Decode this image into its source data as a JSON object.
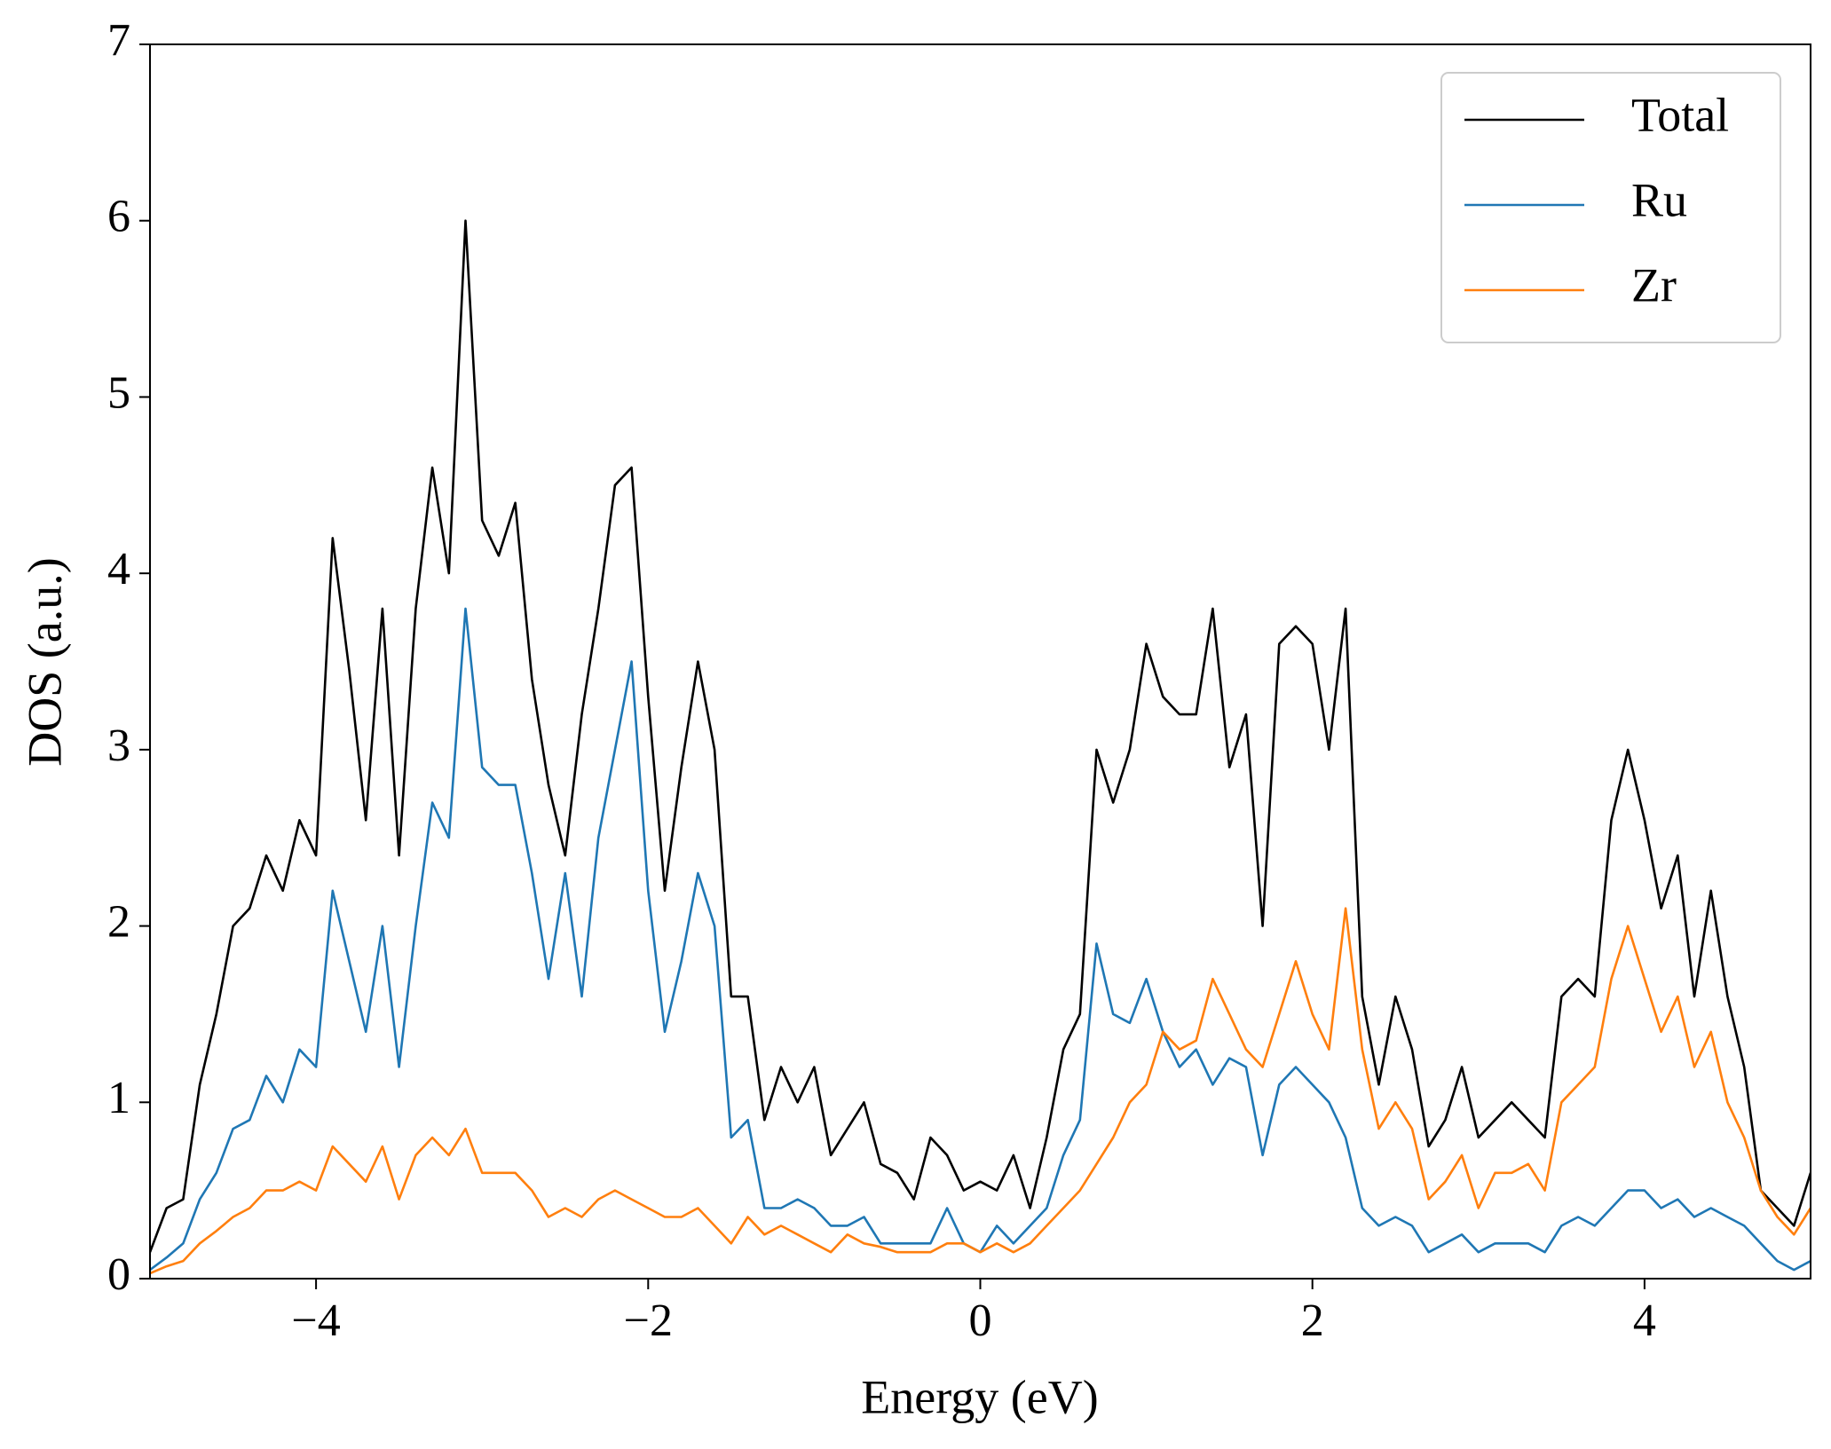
{
  "chart_data": {
    "type": "line",
    "xlabel": "Energy (eV)",
    "ylabel": "DOS (a.u.)",
    "xlim": [
      -5,
      5
    ],
    "ylim": [
      0,
      7
    ],
    "xticks": [
      {
        "value": -4,
        "label": "−4"
      },
      {
        "value": -2,
        "label": "−2"
      },
      0,
      2,
      4
    ],
    "yticks": [
      0,
      1,
      2,
      3,
      4,
      5,
      6,
      7
    ],
    "legend": "upper right",
    "x": [
      -5.0,
      -4.9,
      -4.8,
      -4.7,
      -4.6,
      -4.5,
      -4.4,
      -4.3,
      -4.2,
      -4.1,
      -4.0,
      -3.9,
      -3.8,
      -3.7,
      -3.6,
      -3.5,
      -3.4,
      -3.3,
      -3.2,
      -3.1,
      -3.0,
      -2.9,
      -2.8,
      -2.7,
      -2.6,
      -2.5,
      -2.4,
      -2.3,
      -2.2,
      -2.1,
      -2.0,
      -1.9,
      -1.8,
      -1.7,
      -1.6,
      -1.5,
      -1.4,
      -1.3,
      -1.2,
      -1.1,
      -1.0,
      -0.9,
      -0.8,
      -0.7,
      -0.6,
      -0.5,
      -0.4,
      -0.3,
      -0.2,
      -0.1,
      0.0,
      0.1,
      0.2,
      0.3,
      0.4,
      0.5,
      0.6,
      0.7,
      0.8,
      0.9,
      1.0,
      1.1,
      1.2,
      1.3,
      1.4,
      1.5,
      1.6,
      1.7,
      1.8,
      1.9,
      2.0,
      2.1,
      2.2,
      2.3,
      2.4,
      2.5,
      2.6,
      2.7,
      2.8,
      2.9,
      3.0,
      3.1,
      3.2,
      3.3,
      3.4,
      3.5,
      3.6,
      3.7,
      3.8,
      3.9,
      4.0,
      4.1,
      4.2,
      4.3,
      4.4,
      4.5,
      4.6,
      4.7,
      4.8,
      4.9,
      5.0
    ],
    "series": [
      {
        "name": "Total",
        "color": "#000000",
        "values": [
          0.15,
          0.4,
          0.45,
          1.1,
          1.5,
          2.0,
          2.1,
          2.4,
          2.2,
          2.6,
          2.4,
          4.2,
          3.45,
          2.6,
          3.8,
          2.4,
          3.8,
          4.6,
          4.0,
          6.0,
          4.3,
          4.1,
          4.4,
          3.4,
          2.8,
          2.4,
          3.2,
          3.8,
          4.5,
          4.6,
          3.3,
          2.2,
          2.9,
          3.5,
          3.0,
          1.6,
          1.6,
          0.9,
          1.2,
          1.0,
          1.2,
          0.7,
          0.85,
          1.0,
          0.65,
          0.6,
          0.45,
          0.8,
          0.7,
          0.5,
          0.55,
          0.5,
          0.7,
          0.4,
          0.8,
          1.3,
          1.5,
          3.0,
          2.7,
          3.0,
          3.6,
          3.3,
          3.2,
          3.2,
          3.8,
          2.9,
          3.2,
          2.0,
          3.6,
          3.7,
          3.6,
          3.0,
          3.8,
          1.6,
          1.1,
          1.6,
          1.3,
          0.75,
          0.9,
          1.2,
          0.8,
          0.9,
          1.0,
          0.9,
          0.8,
          1.6,
          1.7,
          1.6,
          2.6,
          3.0,
          2.6,
          2.1,
          2.4,
          1.6,
          2.2,
          1.6,
          1.2,
          0.5,
          0.4,
          0.3,
          0.6
        ]
      },
      {
        "name": "Ru",
        "color": "#1f77b4",
        "values": [
          0.05,
          0.12,
          0.2,
          0.45,
          0.6,
          0.85,
          0.9,
          1.15,
          1.0,
          1.3,
          1.2,
          2.2,
          1.8,
          1.4,
          2.0,
          1.2,
          2.0,
          2.7,
          2.5,
          3.8,
          2.9,
          2.8,
          2.8,
          2.3,
          1.7,
          2.3,
          1.6,
          2.5,
          3.0,
          3.5,
          2.2,
          1.4,
          1.8,
          2.3,
          2.0,
          0.8,
          0.9,
          0.4,
          0.4,
          0.45,
          0.4,
          0.3,
          0.3,
          0.35,
          0.2,
          0.2,
          0.2,
          0.2,
          0.4,
          0.2,
          0.15,
          0.3,
          0.2,
          0.3,
          0.4,
          0.7,
          0.9,
          1.9,
          1.5,
          1.45,
          1.7,
          1.4,
          1.2,
          1.3,
          1.1,
          1.25,
          1.2,
          0.7,
          1.1,
          1.2,
          1.1,
          1.0,
          0.8,
          0.4,
          0.3,
          0.35,
          0.3,
          0.15,
          0.2,
          0.25,
          0.15,
          0.2,
          0.2,
          0.2,
          0.15,
          0.3,
          0.35,
          0.3,
          0.4,
          0.5,
          0.5,
          0.4,
          0.45,
          0.35,
          0.4,
          0.35,
          0.3,
          0.2,
          0.1,
          0.05,
          0.1
        ]
      },
      {
        "name": "Zr",
        "color": "#ff7f0e",
        "values": [
          0.03,
          0.07,
          0.1,
          0.2,
          0.27,
          0.35,
          0.4,
          0.5,
          0.5,
          0.55,
          0.5,
          0.75,
          0.65,
          0.55,
          0.75,
          0.45,
          0.7,
          0.8,
          0.7,
          0.85,
          0.6,
          0.6,
          0.6,
          0.5,
          0.35,
          0.4,
          0.35,
          0.45,
          0.5,
          0.45,
          0.4,
          0.35,
          0.35,
          0.4,
          0.3,
          0.2,
          0.35,
          0.25,
          0.3,
          0.25,
          0.2,
          0.15,
          0.25,
          0.2,
          0.18,
          0.15,
          0.15,
          0.15,
          0.2,
          0.2,
          0.15,
          0.2,
          0.15,
          0.2,
          0.3,
          0.4,
          0.5,
          0.65,
          0.8,
          1.0,
          1.1,
          1.4,
          1.3,
          1.35,
          1.7,
          1.5,
          1.3,
          1.2,
          1.5,
          1.8,
          1.5,
          1.3,
          2.1,
          1.3,
          0.85,
          1.0,
          0.85,
          0.45,
          0.55,
          0.7,
          0.4,
          0.6,
          0.6,
          0.65,
          0.5,
          1.0,
          1.1,
          1.2,
          1.7,
          2.0,
          1.7,
          1.4,
          1.6,
          1.2,
          1.4,
          1.0,
          0.8,
          0.5,
          0.35,
          0.25,
          0.4
        ]
      }
    ]
  }
}
